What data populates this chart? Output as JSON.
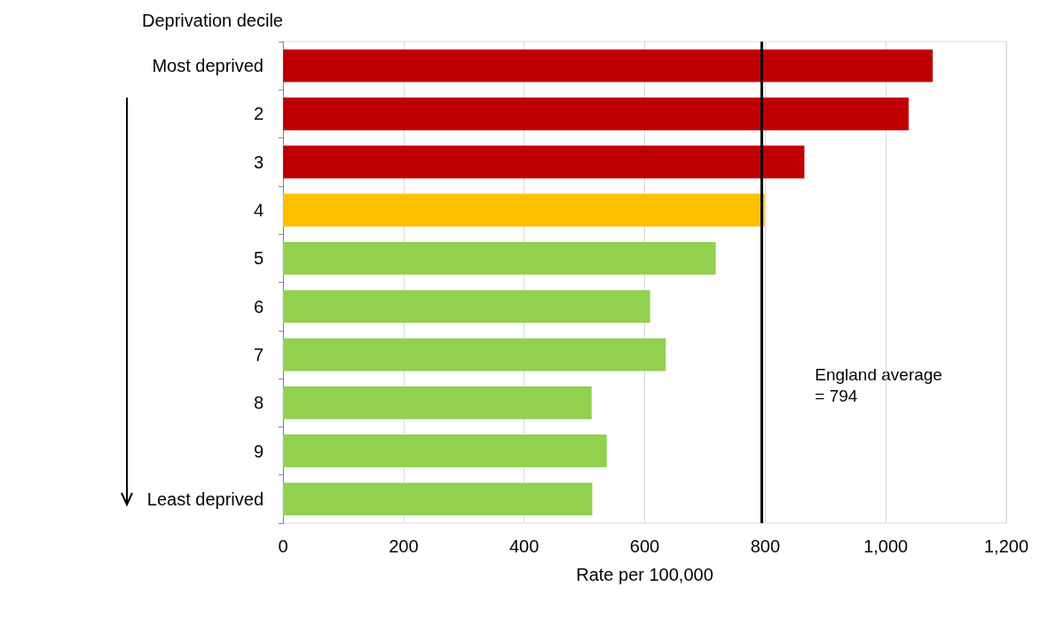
{
  "chart_data": {
    "type": "bar",
    "orientation": "horizontal",
    "ylabel": "Deprivation decile",
    "xlabel": "Rate per 100,000",
    "categories": [
      "Most deprived",
      "2",
      "3",
      "4",
      "5",
      "6",
      "7",
      "8",
      "9",
      "Least deprived"
    ],
    "values": [
      1078,
      1038,
      865,
      799,
      718,
      609,
      635,
      512,
      537,
      513
    ],
    "colors": [
      "#c00000",
      "#c00000",
      "#c00000",
      "#ffc000",
      "#92d050",
      "#92d050",
      "#92d050",
      "#92d050",
      "#92d050",
      "#92d050"
    ],
    "xlim": [
      0,
      1200
    ],
    "xticks": [
      0,
      200,
      400,
      600,
      800,
      {
        "value": 1000,
        "label": "1,000"
      },
      {
        "value": 1200,
        "label": "1,200"
      }
    ],
    "grid": "x",
    "ref_lines": [
      {
        "axis": "x",
        "value": 794,
        "label": "England average\n= 794",
        "color": "#000000"
      }
    ]
  }
}
